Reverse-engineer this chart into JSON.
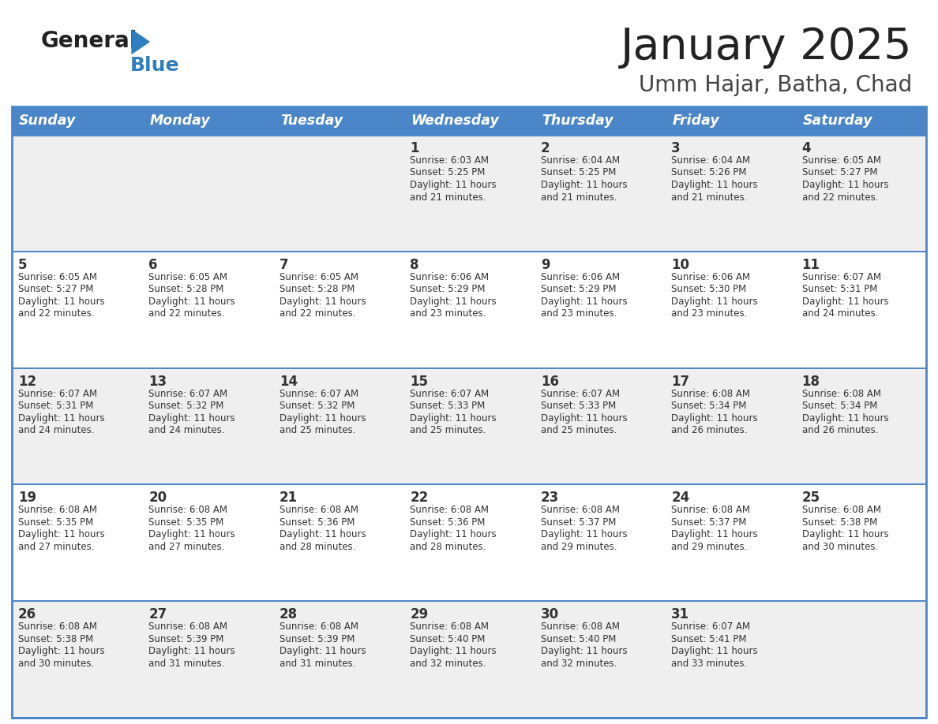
{
  "title": "January 2025",
  "subtitle": "Umm Hajar, Batha, Chad",
  "header_bg": "#4a86c8",
  "header_text_color": "#ffffff",
  "days_of_week": [
    "Sunday",
    "Monday",
    "Tuesday",
    "Wednesday",
    "Thursday",
    "Friday",
    "Saturday"
  ],
  "row_bg_alt": "#efefef",
  "row_bg_white": "#ffffff",
  "border_color": "#4a86c8",
  "cell_border_color": "#aaaaaa",
  "text_color": "#333333",
  "title_color": "#222222",
  "subtitle_color": "#444444",
  "logo_general_color": "#222222",
  "logo_blue_color": "#2e7ebf",
  "logo_triangle_color": "#2e7ebf",
  "calendar": [
    [
      {
        "day": "",
        "info": ""
      },
      {
        "day": "",
        "info": ""
      },
      {
        "day": "",
        "info": ""
      },
      {
        "day": "1",
        "info": "Sunrise: 6:03 AM\nSunset: 5:25 PM\nDaylight: 11 hours\nand 21 minutes."
      },
      {
        "day": "2",
        "info": "Sunrise: 6:04 AM\nSunset: 5:25 PM\nDaylight: 11 hours\nand 21 minutes."
      },
      {
        "day": "3",
        "info": "Sunrise: 6:04 AM\nSunset: 5:26 PM\nDaylight: 11 hours\nand 21 minutes."
      },
      {
        "day": "4",
        "info": "Sunrise: 6:05 AM\nSunset: 5:27 PM\nDaylight: 11 hours\nand 22 minutes."
      }
    ],
    [
      {
        "day": "5",
        "info": "Sunrise: 6:05 AM\nSunset: 5:27 PM\nDaylight: 11 hours\nand 22 minutes."
      },
      {
        "day": "6",
        "info": "Sunrise: 6:05 AM\nSunset: 5:28 PM\nDaylight: 11 hours\nand 22 minutes."
      },
      {
        "day": "7",
        "info": "Sunrise: 6:05 AM\nSunset: 5:28 PM\nDaylight: 11 hours\nand 22 minutes."
      },
      {
        "day": "8",
        "info": "Sunrise: 6:06 AM\nSunset: 5:29 PM\nDaylight: 11 hours\nand 23 minutes."
      },
      {
        "day": "9",
        "info": "Sunrise: 6:06 AM\nSunset: 5:29 PM\nDaylight: 11 hours\nand 23 minutes."
      },
      {
        "day": "10",
        "info": "Sunrise: 6:06 AM\nSunset: 5:30 PM\nDaylight: 11 hours\nand 23 minutes."
      },
      {
        "day": "11",
        "info": "Sunrise: 6:07 AM\nSunset: 5:31 PM\nDaylight: 11 hours\nand 24 minutes."
      }
    ],
    [
      {
        "day": "12",
        "info": "Sunrise: 6:07 AM\nSunset: 5:31 PM\nDaylight: 11 hours\nand 24 minutes."
      },
      {
        "day": "13",
        "info": "Sunrise: 6:07 AM\nSunset: 5:32 PM\nDaylight: 11 hours\nand 24 minutes."
      },
      {
        "day": "14",
        "info": "Sunrise: 6:07 AM\nSunset: 5:32 PM\nDaylight: 11 hours\nand 25 minutes."
      },
      {
        "day": "15",
        "info": "Sunrise: 6:07 AM\nSunset: 5:33 PM\nDaylight: 11 hours\nand 25 minutes."
      },
      {
        "day": "16",
        "info": "Sunrise: 6:07 AM\nSunset: 5:33 PM\nDaylight: 11 hours\nand 25 minutes."
      },
      {
        "day": "17",
        "info": "Sunrise: 6:08 AM\nSunset: 5:34 PM\nDaylight: 11 hours\nand 26 minutes."
      },
      {
        "day": "18",
        "info": "Sunrise: 6:08 AM\nSunset: 5:34 PM\nDaylight: 11 hours\nand 26 minutes."
      }
    ],
    [
      {
        "day": "19",
        "info": "Sunrise: 6:08 AM\nSunset: 5:35 PM\nDaylight: 11 hours\nand 27 minutes."
      },
      {
        "day": "20",
        "info": "Sunrise: 6:08 AM\nSunset: 5:35 PM\nDaylight: 11 hours\nand 27 minutes."
      },
      {
        "day": "21",
        "info": "Sunrise: 6:08 AM\nSunset: 5:36 PM\nDaylight: 11 hours\nand 28 minutes."
      },
      {
        "day": "22",
        "info": "Sunrise: 6:08 AM\nSunset: 5:36 PM\nDaylight: 11 hours\nand 28 minutes."
      },
      {
        "day": "23",
        "info": "Sunrise: 6:08 AM\nSunset: 5:37 PM\nDaylight: 11 hours\nand 29 minutes."
      },
      {
        "day": "24",
        "info": "Sunrise: 6:08 AM\nSunset: 5:37 PM\nDaylight: 11 hours\nand 29 minutes."
      },
      {
        "day": "25",
        "info": "Sunrise: 6:08 AM\nSunset: 5:38 PM\nDaylight: 11 hours\nand 30 minutes."
      }
    ],
    [
      {
        "day": "26",
        "info": "Sunrise: 6:08 AM\nSunset: 5:38 PM\nDaylight: 11 hours\nand 30 minutes."
      },
      {
        "day": "27",
        "info": "Sunrise: 6:08 AM\nSunset: 5:39 PM\nDaylight: 11 hours\nand 31 minutes."
      },
      {
        "day": "28",
        "info": "Sunrise: 6:08 AM\nSunset: 5:39 PM\nDaylight: 11 hours\nand 31 minutes."
      },
      {
        "day": "29",
        "info": "Sunrise: 6:08 AM\nSunset: 5:40 PM\nDaylight: 11 hours\nand 32 minutes."
      },
      {
        "day": "30",
        "info": "Sunrise: 6:08 AM\nSunset: 5:40 PM\nDaylight: 11 hours\nand 32 minutes."
      },
      {
        "day": "31",
        "info": "Sunrise: 6:07 AM\nSunset: 5:41 PM\nDaylight: 11 hours\nand 33 minutes."
      },
      {
        "day": "",
        "info": ""
      }
    ]
  ]
}
